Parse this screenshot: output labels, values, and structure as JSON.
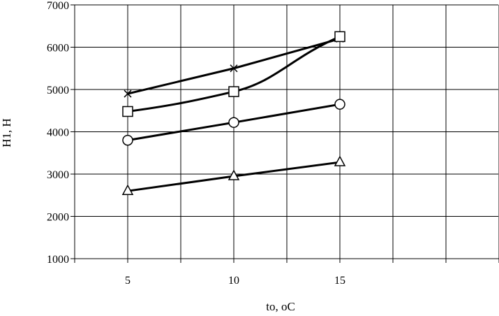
{
  "chart_data": {
    "type": "line",
    "xlabel": "to, oC",
    "ylabel": "H1, H",
    "x_categories": [
      "5",
      "10",
      "15"
    ],
    "x": [
      5,
      10,
      15
    ],
    "ylim": [
      1000,
      7000
    ],
    "y_ticks": [
      "1000",
      "2000",
      "3000",
      "4000",
      "5000",
      "6000",
      "7000"
    ],
    "grid": true,
    "legend": "none",
    "series": [
      {
        "marker": "cross",
        "values": [
          4900,
          5500,
          6200
        ]
      },
      {
        "marker": "square",
        "values": [
          4480,
          4950,
          6250
        ]
      },
      {
        "marker": "circle",
        "values": [
          3800,
          4220,
          4650
        ]
      },
      {
        "marker": "triangle",
        "values": [
          2600,
          2950,
          3280
        ]
      }
    ],
    "line_color": "#000000",
    "grid_color": "#000000"
  }
}
